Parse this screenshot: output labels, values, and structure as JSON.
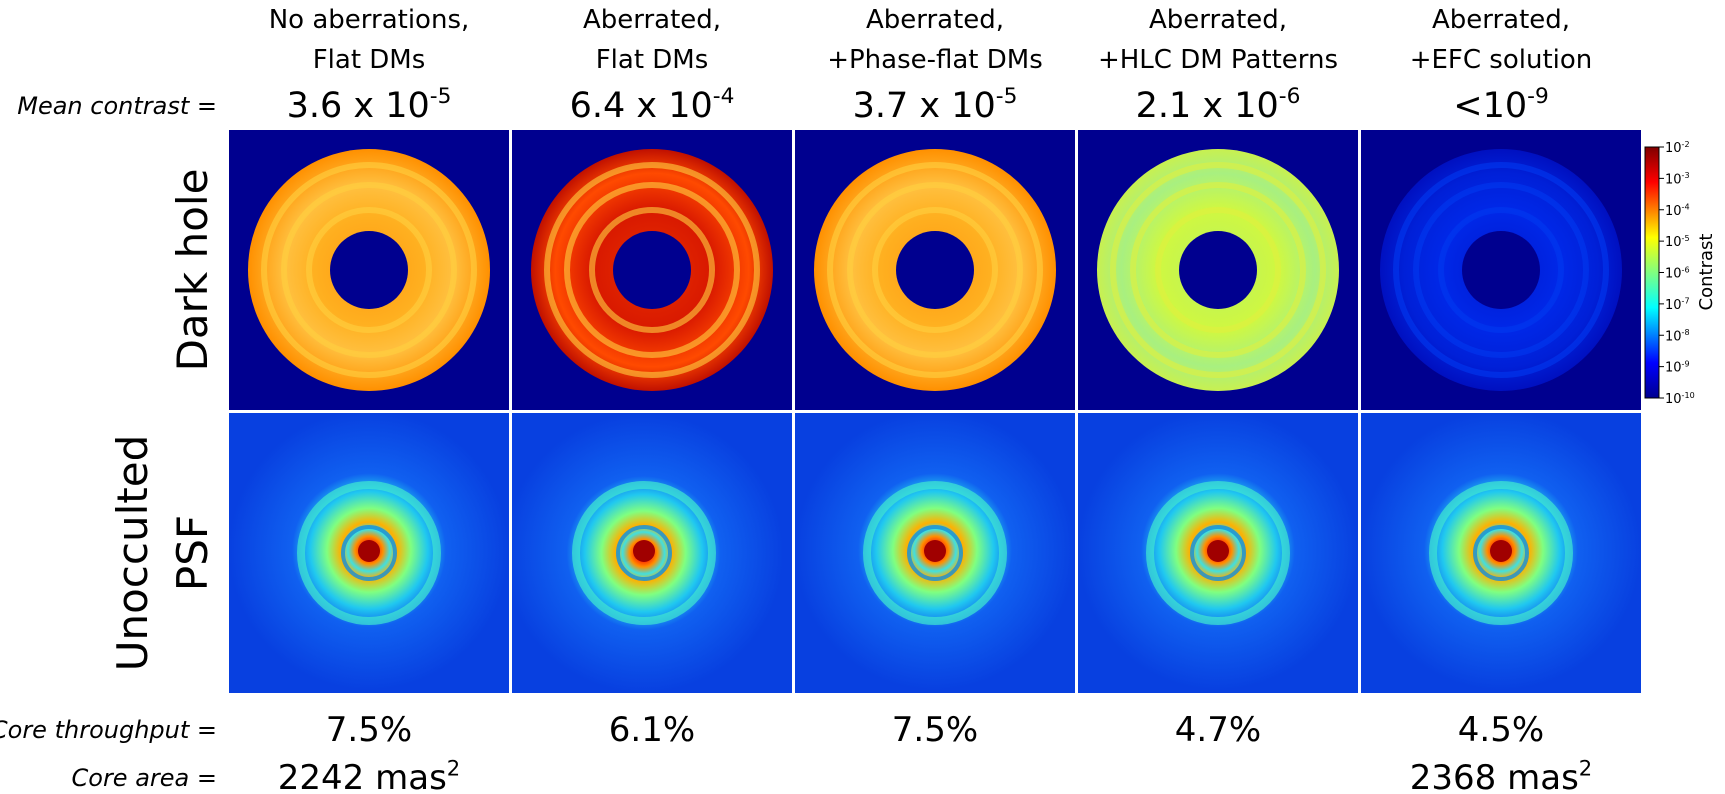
{
  "columns": [
    {
      "title": [
        "No aberrations,",
        "Flat DMs"
      ],
      "mean_contrast": {
        "base": "3.6 x 10",
        "exp": "-5"
      },
      "core_throughput": "7.5%",
      "core_area": {
        "base": "2242 mas",
        "exp": "2"
      }
    },
    {
      "title": [
        "Aberrated,",
        "Flat DMs"
      ],
      "mean_contrast": {
        "base": "6.4 x 10",
        "exp": "-4"
      },
      "core_throughput": "6.1%"
    },
    {
      "title": [
        "Aberrated,",
        "+Phase-flat DMs"
      ],
      "mean_contrast": {
        "base": "3.7 x 10",
        "exp": "-5"
      },
      "core_throughput": "7.5%"
    },
    {
      "title": [
        "Aberrated,",
        "+HLC DM Patterns"
      ],
      "mean_contrast": {
        "base": "2.1 x 10",
        "exp": "-6"
      },
      "core_throughput": "4.7%"
    },
    {
      "title": [
        "Aberrated,",
        "+EFC solution"
      ],
      "mean_contrast": {
        "base": "<10",
        "exp": "-9"
      },
      "core_throughput": "4.5%",
      "core_area": {
        "base": "2368 mas",
        "exp": "2"
      }
    }
  ],
  "row_labels": {
    "mean_contrast": "Mean contrast =",
    "core_throughput": "Core throughput =",
    "core_area": "Core area ="
  },
  "rows": [
    {
      "label": [
        "Dark hole"
      ]
    },
    {
      "label": [
        "Unocculted",
        "PSF"
      ]
    }
  ],
  "colorbar": {
    "label": "Contrast",
    "ticks": [
      {
        "base": "10",
        "exp": "-2"
      },
      {
        "base": "10",
        "exp": "-3"
      },
      {
        "base": "10",
        "exp": "-4"
      },
      {
        "base": "10",
        "exp": "-5"
      },
      {
        "base": "10",
        "exp": "-6"
      },
      {
        "base": "10",
        "exp": "-7"
      },
      {
        "base": "10",
        "exp": "-8"
      },
      {
        "base": "10",
        "exp": "-9"
      },
      {
        "base": "10",
        "exp": "-10"
      }
    ]
  }
}
